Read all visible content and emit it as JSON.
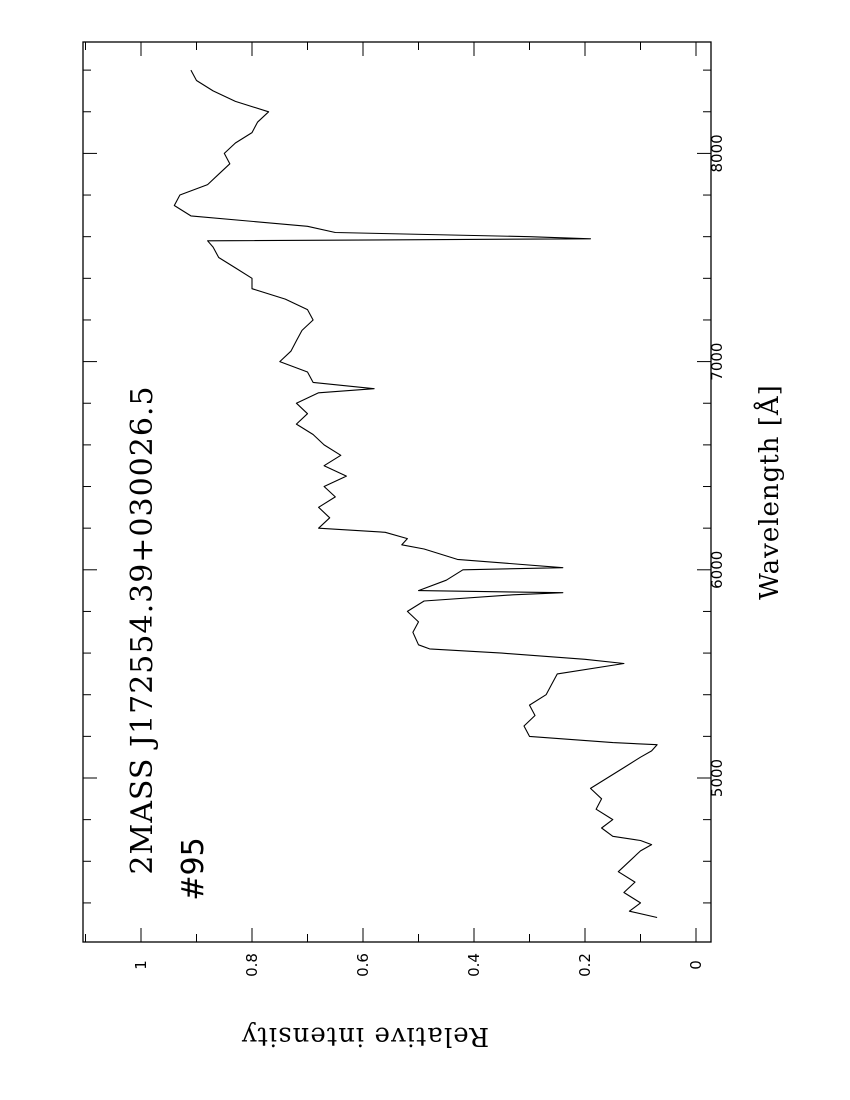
{
  "chart_data": {
    "type": "line",
    "title": "2MASS  J172554.39+030026.5",
    "subtitle": "#95",
    "xlabel": "Wavelength   [Å]",
    "ylabel": "Relative  intensity",
    "x_ticks": [
      5000,
      6000,
      7000,
      8000
    ],
    "y_ticks": [
      0,
      0.2,
      0.4,
      0.6,
      0.8,
      1
    ],
    "y_tick_labels": [
      "0",
      "0.2",
      "0.4",
      "0.6",
      "0.8",
      "1"
    ],
    "x_tick_labels": [
      "5000",
      "6000",
      "7000",
      "8000"
    ],
    "xlim": [
      4250,
      8550
    ],
    "ylim": [
      0,
      1.1
    ],
    "orientation": "rotated 90° (wavelength increases upward)",
    "grid": false,
    "series": [
      {
        "x": [
          4330,
          4360,
          4400,
          4450,
          4500,
          4550,
          4600,
          4650,
          4680,
          4700,
          4720,
          4760,
          4800,
          4850,
          4900,
          4950,
          5000,
          5050,
          5100,
          5130,
          5160,
          5170,
          5200,
          5250,
          5300,
          5350,
          5400,
          5450,
          5500,
          5550,
          5570,
          5600,
          5620,
          5640,
          5700,
          5750,
          5800,
          5850,
          5880,
          5890,
          5900,
          5950,
          6000,
          6010,
          6050,
          6100,
          6120,
          6150,
          6180,
          6200,
          6250,
          6300,
          6350,
          6400,
          6450,
          6500,
          6550,
          6600,
          6650,
          6700,
          6750,
          6800,
          6850,
          6870,
          6900,
          6950,
          7000,
          7050,
          7100,
          7150,
          7200,
          7250,
          7300,
          7350,
          7400,
          7450,
          7500,
          7550,
          7580,
          7590,
          7600,
          7620,
          7650,
          7700,
          7750,
          7800,
          7850,
          7900,
          7950,
          8000,
          8050,
          8100,
          8150,
          8200,
          8250,
          8300,
          8350,
          8400
        ],
        "y": [
          0.07,
          0.12,
          0.1,
          0.13,
          0.11,
          0.14,
          0.12,
          0.1,
          0.08,
          0.1,
          0.15,
          0.17,
          0.15,
          0.18,
          0.17,
          0.19,
          0.16,
          0.13,
          0.1,
          0.08,
          0.07,
          0.15,
          0.3,
          0.31,
          0.29,
          0.3,
          0.27,
          0.26,
          0.25,
          0.13,
          0.2,
          0.35,
          0.48,
          0.5,
          0.51,
          0.5,
          0.52,
          0.49,
          0.33,
          0.24,
          0.5,
          0.45,
          0.42,
          0.24,
          0.43,
          0.49,
          0.53,
          0.52,
          0.56,
          0.68,
          0.66,
          0.68,
          0.65,
          0.67,
          0.63,
          0.67,
          0.64,
          0.67,
          0.69,
          0.72,
          0.7,
          0.72,
          0.68,
          0.58,
          0.69,
          0.7,
          0.75,
          0.73,
          0.72,
          0.71,
          0.69,
          0.7,
          0.74,
          0.8,
          0.8,
          0.83,
          0.86,
          0.87,
          0.88,
          0.19,
          0.3,
          0.65,
          0.7,
          0.91,
          0.94,
          0.93,
          0.88,
          0.86,
          0.84,
          0.85,
          0.83,
          0.8,
          0.79,
          0.77,
          0.83,
          0.87,
          0.9,
          0.91
        ]
      }
    ]
  }
}
